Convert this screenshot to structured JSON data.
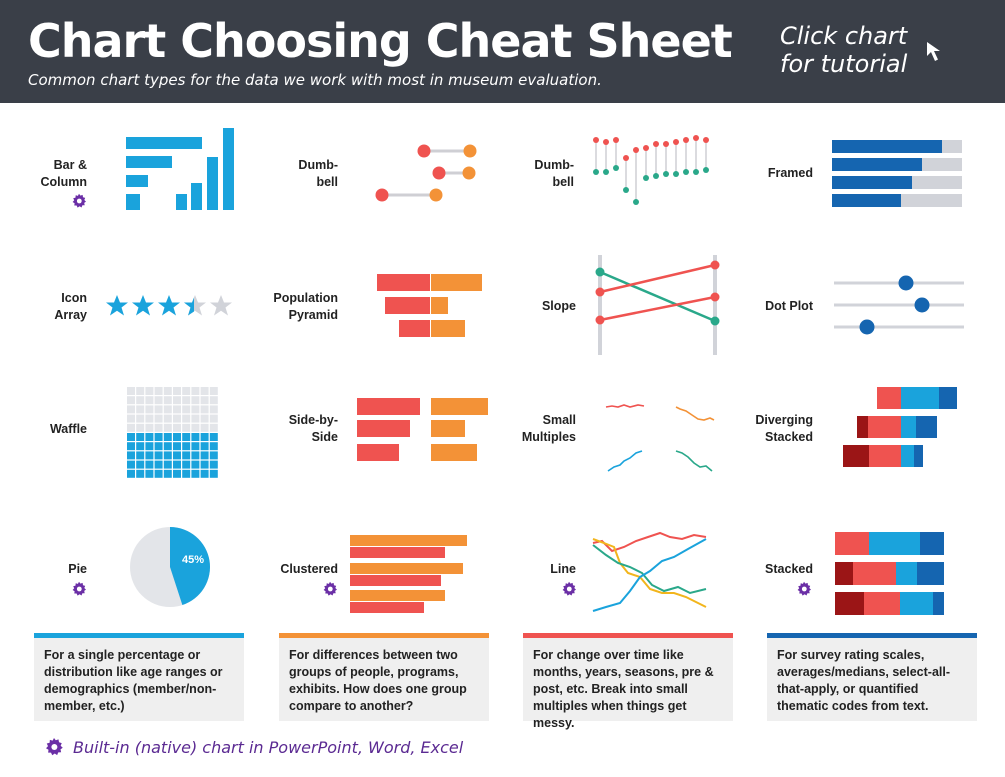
{
  "header": {
    "title": "Chart Choosing Cheat Sheet",
    "subtitle": "Common chart types for the data we work with most in museum evaluation.",
    "cta_line1": "Click chart",
    "cta_line2": "for tutorial"
  },
  "charts": {
    "bar_column": {
      "label1": "Bar &",
      "label2": "Column"
    },
    "dumbbell_h": {
      "label1": "Dumb-",
      "label2": "bell"
    },
    "dumbbell_v": {
      "label1": "Dumb-",
      "label2": "bell"
    },
    "framed": {
      "label1": "Framed"
    },
    "icon_array": {
      "label1": "Icon",
      "label2": "Array"
    },
    "pop_pyramid": {
      "label1": "Population",
      "label2": "Pyramid"
    },
    "slope": {
      "label1": "Slope"
    },
    "dot_plot": {
      "label1": "Dot Plot"
    },
    "waffle": {
      "label1": "Waffle"
    },
    "side_by_side": {
      "label1": "Side-by-",
      "label2": "Side"
    },
    "small_multiples": {
      "label1": "Small",
      "label2": "Multiples"
    },
    "diverging_stacked": {
      "label1": "Diverging",
      "label2": "Stacked"
    },
    "pie": {
      "label1": "Pie",
      "value_label": "45%",
      "value": 0.45
    },
    "clustered": {
      "label1": "Clustered"
    },
    "line": {
      "label1": "Line"
    },
    "stacked": {
      "label1": "Stacked"
    }
  },
  "panels": [
    {
      "text": "For a single percentage or distribution like age ranges or demographics (member/non-member, etc.)",
      "color": "#1aa3dc"
    },
    {
      "text": "For differences between two groups of people, programs, exhibits. How does one group compare to another?",
      "color": "#f39237"
    },
    {
      "text": "For change over time like months, years, seasons, pre & post, etc. Break into small multiples when things get messy.",
      "color": "#ef5350"
    },
    {
      "text": "For survey rating scales, averages/medians, select-all-that-apply, or quantified thematic codes from text.",
      "color": "#1565b0"
    }
  ],
  "footer": {
    "legend": "Built-in (native) chart in PowerPoint, Word, Excel"
  },
  "colors": {
    "blue": "#1aa3dc",
    "orange": "#f39237",
    "red": "#ef5350",
    "navy": "#1565b0",
    "teal": "#2aa88a",
    "gray": "#d1d3d9",
    "purple": "#6b2fa6",
    "header": "#3a3f48"
  }
}
